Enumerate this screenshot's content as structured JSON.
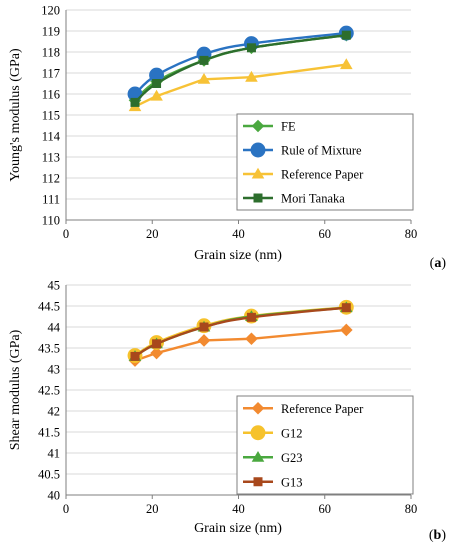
{
  "colors": {
    "fe": "#4aa83f",
    "rule": "#2a73c2",
    "ref": "#f7c236",
    "mori": "#2d6e2d",
    "ref_b": "#f28a30",
    "g12": "#f6c22c",
    "g23": "#4aa83f",
    "g13": "#a8481c",
    "grid": "#d9d9d9",
    "axis": "#7f7f7f"
  },
  "chart_data": [
    {
      "type": "line",
      "panel_label": "(a)",
      "title": "",
      "xlabel": "Grain size (nm)",
      "ylabel": "Young's modulus (GPa)",
      "xlim": [
        0,
        80
      ],
      "ylim": [
        110,
        120
      ],
      "xticks": [
        "0",
        "20",
        "40",
        "60",
        "80"
      ],
      "yticks": [
        "110",
        "111",
        "112",
        "113",
        "114",
        "115",
        "116",
        "117",
        "118",
        "119",
        "120"
      ],
      "grid": "horizontal",
      "legend_position": "bottom-right",
      "series": [
        {
          "name": "FE",
          "marker": "diamond",
          "color_key": "fe",
          "smooth": true,
          "x": [
            16,
            21,
            32,
            43,
            65
          ],
          "y": [
            115.7,
            116.6,
            117.6,
            118.2,
            118.8
          ]
        },
        {
          "name": "Rule of Mixture",
          "marker": "circle",
          "color_key": "rule",
          "smooth": true,
          "x": [
            16,
            21,
            32,
            43,
            65
          ],
          "y": [
            116.0,
            116.9,
            117.9,
            118.4,
            118.9
          ]
        },
        {
          "name": "Reference Paper",
          "marker": "triangle",
          "color_key": "ref",
          "smooth": false,
          "x": [
            16,
            21,
            32,
            43,
            65
          ],
          "y": [
            115.4,
            115.9,
            116.7,
            116.8,
            117.4
          ]
        },
        {
          "name": "Mori Tanaka",
          "marker": "square",
          "color_key": "mori",
          "smooth": true,
          "x": [
            16,
            21,
            32,
            43,
            65
          ],
          "y": [
            115.6,
            116.5,
            117.6,
            118.2,
            118.8
          ]
        }
      ]
    },
    {
      "type": "line",
      "panel_label": "(b)",
      "title": "",
      "xlabel": "Grain size (nm)",
      "ylabel": "Shear modulus (GPa)",
      "xlim": [
        0,
        80
      ],
      "ylim": [
        40,
        45
      ],
      "xticks": [
        "0",
        "20",
        "40",
        "60",
        "80"
      ],
      "yticks": [
        "40",
        "40.5",
        "41",
        "41.5",
        "42",
        "42.5",
        "43",
        "43.5",
        "44",
        "44.5",
        "45"
      ],
      "grid": "horizontal",
      "legend_position": "bottom-right",
      "series": [
        {
          "name": "Reference Paper",
          "marker": "diamond",
          "color_key": "ref_b",
          "smooth": false,
          "x": [
            16,
            21,
            32,
            43,
            65
          ],
          "y": [
            43.2,
            43.38,
            43.68,
            43.72,
            43.93
          ]
        },
        {
          "name": "G12",
          "marker": "circle",
          "color_key": "g12",
          "smooth": true,
          "x": [
            16,
            21,
            32,
            43,
            65
          ],
          "y": [
            43.32,
            43.63,
            44.03,
            44.26,
            44.47
          ]
        },
        {
          "name": "G23",
          "marker": "triangle",
          "color_key": "g23",
          "smooth": true,
          "x": [
            16,
            21,
            32,
            43,
            65
          ],
          "y": [
            43.3,
            43.6,
            44.0,
            44.25,
            44.46
          ]
        },
        {
          "name": "G13",
          "marker": "square",
          "color_key": "g13",
          "smooth": true,
          "x": [
            16,
            21,
            32,
            43,
            65
          ],
          "y": [
            43.3,
            43.6,
            44.0,
            44.23,
            44.46
          ]
        }
      ]
    }
  ]
}
